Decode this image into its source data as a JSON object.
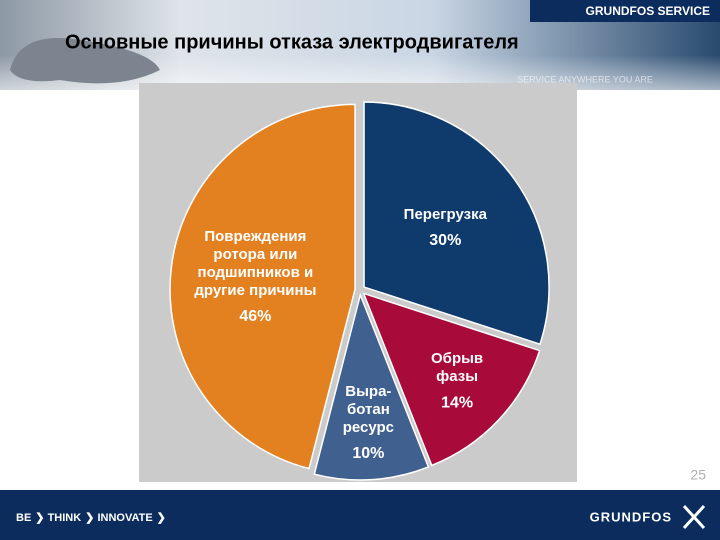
{
  "header": {
    "brand": "GRUNDFOS SERVICE",
    "slogan": "SERVICE ANYWHERE YOU ARE"
  },
  "chart_data": {
    "type": "pie",
    "title": "Основные причины отказа электродвигателя",
    "categories": [
      [
        "Перегрузка"
      ],
      [
        "Обрыв",
        "фазы"
      ],
      [
        "Выра-",
        "ботан",
        "ресурс"
      ],
      [
        "Повреждения",
        "ротора или",
        "подшипников и",
        "другие причины"
      ]
    ],
    "values": [
      30,
      14,
      10,
      46
    ],
    "value_labels": [
      "30%",
      "14%",
      "10%",
      "46%"
    ],
    "colors": [
      "#0e3a6c",
      "#a80a3a",
      "#40608f",
      "#e3801f"
    ]
  },
  "footer": {
    "slogan": [
      "BE",
      "THINK",
      "INNOVATE"
    ],
    "logo": "GRUNDFOS",
    "page": "25"
  }
}
